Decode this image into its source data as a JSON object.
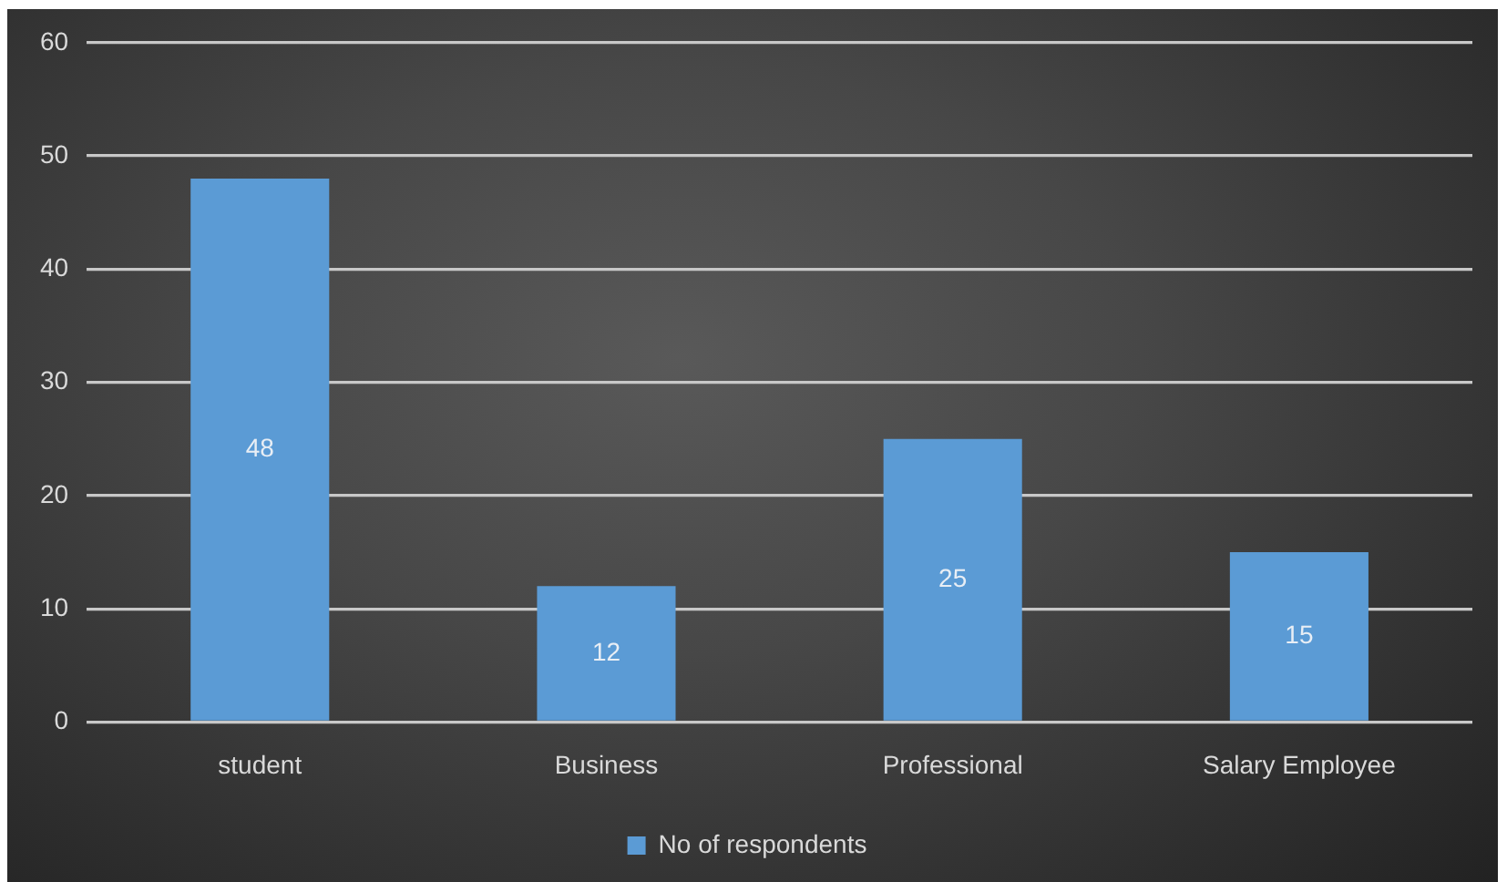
{
  "chart_data": {
    "type": "bar",
    "categories": [
      "student",
      "Business",
      "Professional",
      "Salary Employee"
    ],
    "series": [
      {
        "name": "No of respondents",
        "color": "#5b9bd5",
        "values": [
          48,
          12,
          25,
          15
        ]
      }
    ],
    "ylim": [
      0,
      60
    ],
    "yticks": [
      0,
      10,
      20,
      30,
      40,
      50,
      60
    ],
    "grid": "y",
    "legend": "bottom",
    "data_labels": true
  }
}
